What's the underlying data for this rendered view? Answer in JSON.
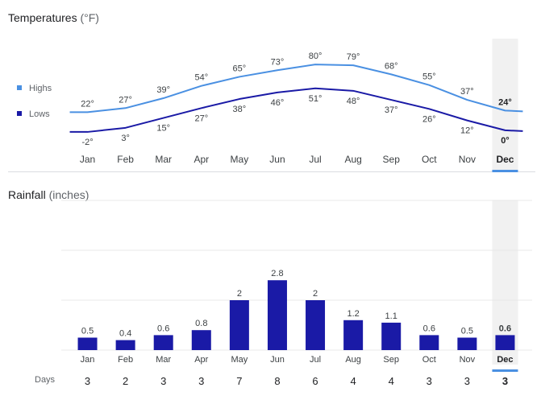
{
  "temperature": {
    "title": "Temperatures",
    "unit": "(°F)",
    "legend": [
      {
        "label": "Highs",
        "color": "#4a90e2"
      },
      {
        "label": "Lows",
        "color": "#1a1aa6"
      }
    ]
  },
  "rainfall": {
    "title": "Rainfall",
    "unit": "(inches)",
    "days_label": "Days"
  },
  "selected_month": "Dec",
  "colors": {
    "highs": "#4a90e2",
    "lows": "#1a1aa6",
    "bar": "#1a1aa6",
    "selected_band": "#f1f1f1",
    "selected_underline": "#4a90e2",
    "grid": "#e8e8e8"
  },
  "chart_data": [
    {
      "type": "line",
      "title": "Temperatures (°F)",
      "categories": [
        "Jan",
        "Feb",
        "Mar",
        "Apr",
        "May",
        "Jun",
        "Jul",
        "Aug",
        "Sep",
        "Oct",
        "Nov",
        "Dec"
      ],
      "series": [
        {
          "name": "Highs",
          "values": [
            22,
            27,
            39,
            54,
            65,
            73,
            80,
            79,
            68,
            55,
            37,
            24
          ]
        },
        {
          "name": "Lows",
          "values": [
            -2,
            3,
            15,
            27,
            38,
            46,
            51,
            48,
            37,
            26,
            12,
            0
          ]
        }
      ],
      "ylim": [
        -5,
        85
      ],
      "label_suffix": "°"
    },
    {
      "type": "bar",
      "title": "Rainfall (inches)",
      "categories": [
        "Jan",
        "Feb",
        "Mar",
        "Apr",
        "May",
        "Jun",
        "Jul",
        "Aug",
        "Sep",
        "Oct",
        "Nov",
        "Dec"
      ],
      "values": [
        0.5,
        0.4,
        0.6,
        0.8,
        2,
        2.8,
        2,
        1.2,
        1.1,
        0.6,
        0.5,
        0.6
      ],
      "value_labels": [
        "0.5",
        "0.4",
        "0.6",
        "0.8",
        "2",
        "2.8",
        "2",
        "1.2",
        "1.1",
        "0.6",
        "0.5",
        "0.6"
      ],
      "days": [
        3,
        2,
        3,
        3,
        7,
        8,
        6,
        4,
        4,
        3,
        3,
        3
      ],
      "ylim": [
        0,
        6
      ]
    }
  ]
}
